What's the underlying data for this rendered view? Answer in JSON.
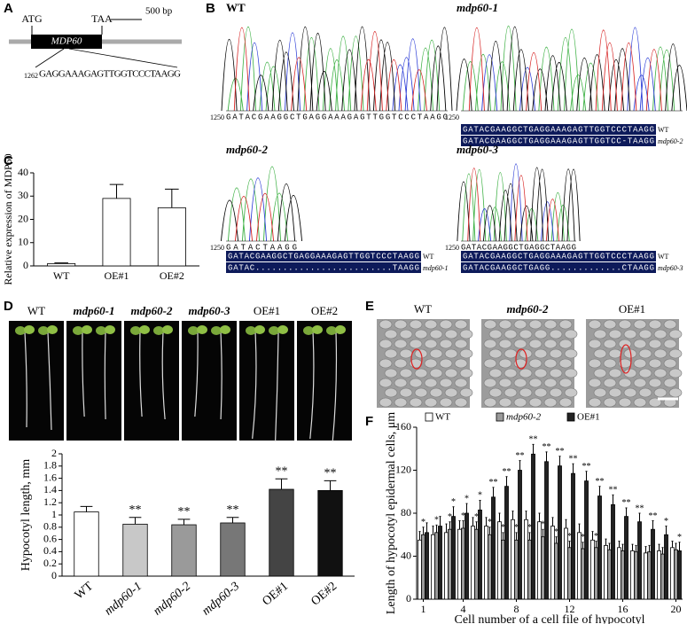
{
  "panel_labels": [
    "A",
    "B",
    "C",
    "D",
    "E",
    "F"
  ],
  "panel_a": {
    "start": "ATG",
    "stop": "TAA",
    "scale": "500 bp",
    "gene": "MDP60",
    "position": "1262",
    "sequence": "GAGGAAAGAGTTGGTCCCTAAGG"
  },
  "panel_b": {
    "traces": [
      {
        "name": "WT",
        "position": "1250",
        "sequence": "GATACGAAGGCTGAGGAAAGAGTTGGTCCCTAAGG",
        "alignment": []
      },
      {
        "name": "mdp60-1",
        "position": "1250",
        "sequence": null,
        "alignment": [
          {
            "sequence": "GATACGAAGGCTGAGGAAAGAGTTGGTCCCTAAGG",
            "label": "WT"
          },
          {
            "sequence": "GATACGAAGGCTGAGGAAAGAGTTGGTCC-TAAGG",
            "label": "mdp60-2"
          }
        ]
      },
      {
        "name": "mdp60-2",
        "position": "1250",
        "sequence": "GATACTAAGG",
        "alignment": [
          {
            "sequence": "GATACGAAGGCTGAGGAAAGAGTTGGTCCCTAAGG",
            "label": "WT"
          },
          {
            "sequence": "GATAC.........................TAAGG",
            "label": "mdp60-1"
          }
        ]
      },
      {
        "name": "mdp60-3",
        "position": "1250",
        "sequence": "GATACGAAGGCTGAGGCTAAGG",
        "alignment": [
          {
            "sequence": "GATACGAAGGCTGAGGAAAGAGTTGGTCCCTAAGG",
            "label": "WT"
          },
          {
            "sequence": "GATACGAAGGCTGAGG.............CTAAGG",
            "label": "mdp60-3"
          }
        ]
      }
    ]
  },
  "panel_d": {
    "photo_labels": [
      "WT",
      "mdp60-1",
      "mdp60-2",
      "mdp60-3",
      "OE#1",
      "OE#2"
    ]
  },
  "panel_e": {
    "labels": [
      "WT",
      "mdp60-2",
      "OE#1"
    ]
  },
  "chart_data": [
    {
      "type": "bar",
      "ylabel": "Relative expression of MDP60",
      "categories": [
        "WT",
        "OE#1",
        "OE#2"
      ],
      "values": [
        1,
        29,
        25
      ],
      "errors": [
        0.3,
        6,
        8
      ],
      "color": "#ffffff",
      "ylim": [
        0,
        40
      ],
      "yticks": [
        0,
        10,
        20,
        30,
        40
      ]
    },
    {
      "type": "bar",
      "ylabel": "Hypocotyl length, mm",
      "categories": [
        "WT",
        "mdp60-1",
        "mdp60-2",
        "mdp60-3",
        "OE#1",
        "OE#2"
      ],
      "values": [
        1.05,
        0.85,
        0.84,
        0.87,
        1.42,
        1.4
      ],
      "errors": [
        0.09,
        0.11,
        0.09,
        0.09,
        0.17,
        0.16
      ],
      "colors": [
        "#ffffff",
        "#c8c8c8",
        "#9a9a9a",
        "#777777",
        "#444444",
        "#111111"
      ],
      "annotations": [
        null,
        "**",
        "**",
        "**",
        "**",
        "**"
      ],
      "ylim": [
        0,
        2
      ],
      "yticks": [
        0,
        0.2,
        0.4,
        0.6,
        0.8,
        1,
        1.2,
        1.4,
        1.6,
        1.8,
        2
      ]
    },
    {
      "type": "grouped-bar",
      "ylabel": "Length of hypocotyl epidermal cells, μm",
      "xlabel": "Cell number of a cell file of hypocotyl",
      "categories": [
        1,
        null,
        null,
        4,
        null,
        null,
        null,
        8,
        null,
        null,
        null,
        12,
        null,
        null,
        null,
        16,
        null,
        null,
        null,
        20
      ],
      "series": [
        {
          "name": "WT",
          "color": "#ffffff",
          "values": [
            55,
            60,
            62,
            65,
            68,
            68,
            72,
            74,
            74,
            72,
            68,
            66,
            62,
            55,
            50,
            48,
            45,
            43,
            45,
            48
          ],
          "errors": [
            8,
            8,
            8,
            8,
            8,
            8,
            8,
            8,
            8,
            8,
            8,
            8,
            8,
            8,
            6,
            6,
            6,
            6,
            6,
            6
          ]
        },
        {
          "name": "mdp60-2",
          "color": "#9a9a9a",
          "values": [
            60,
            62,
            65,
            66,
            65,
            60,
            55,
            55,
            55,
            58,
            52,
            48,
            47,
            48,
            46,
            45,
            44,
            44,
            42,
            46
          ],
          "errors": [
            7,
            7,
            7,
            7,
            7,
            7,
            7,
            7,
            7,
            7,
            6,
            6,
            6,
            6,
            6,
            6,
            6,
            6,
            6,
            6
          ],
          "significance": [
            "*",
            "*",
            "*",
            "*",
            "*",
            "*",
            "*",
            "*",
            "*",
            "*",
            "*",
            "*",
            "*",
            "*",
            null,
            null,
            null,
            null,
            null,
            null
          ]
        },
        {
          "name": "OE#1",
          "color": "#222222",
          "values": [
            62,
            68,
            77,
            80,
            83,
            95,
            105,
            120,
            135,
            128,
            124,
            117,
            110,
            96,
            88,
            77,
            72,
            65,
            60,
            45
          ],
          "errors": [
            9,
            9,
            9,
            9,
            9,
            9,
            9,
            9,
            9,
            9,
            9,
            9,
            9,
            9,
            9,
            8,
            8,
            8,
            8,
            8
          ],
          "significance": [
            null,
            null,
            "*",
            "*",
            "*",
            "**",
            "**",
            "**",
            "**",
            "**",
            "**",
            "**",
            "**",
            "**",
            "**",
            "**",
            "**",
            "**",
            "*",
            "*"
          ]
        }
      ],
      "ylim": [
        0,
        160
      ],
      "yticks": [
        0,
        40,
        80,
        120,
        160
      ]
    }
  ]
}
